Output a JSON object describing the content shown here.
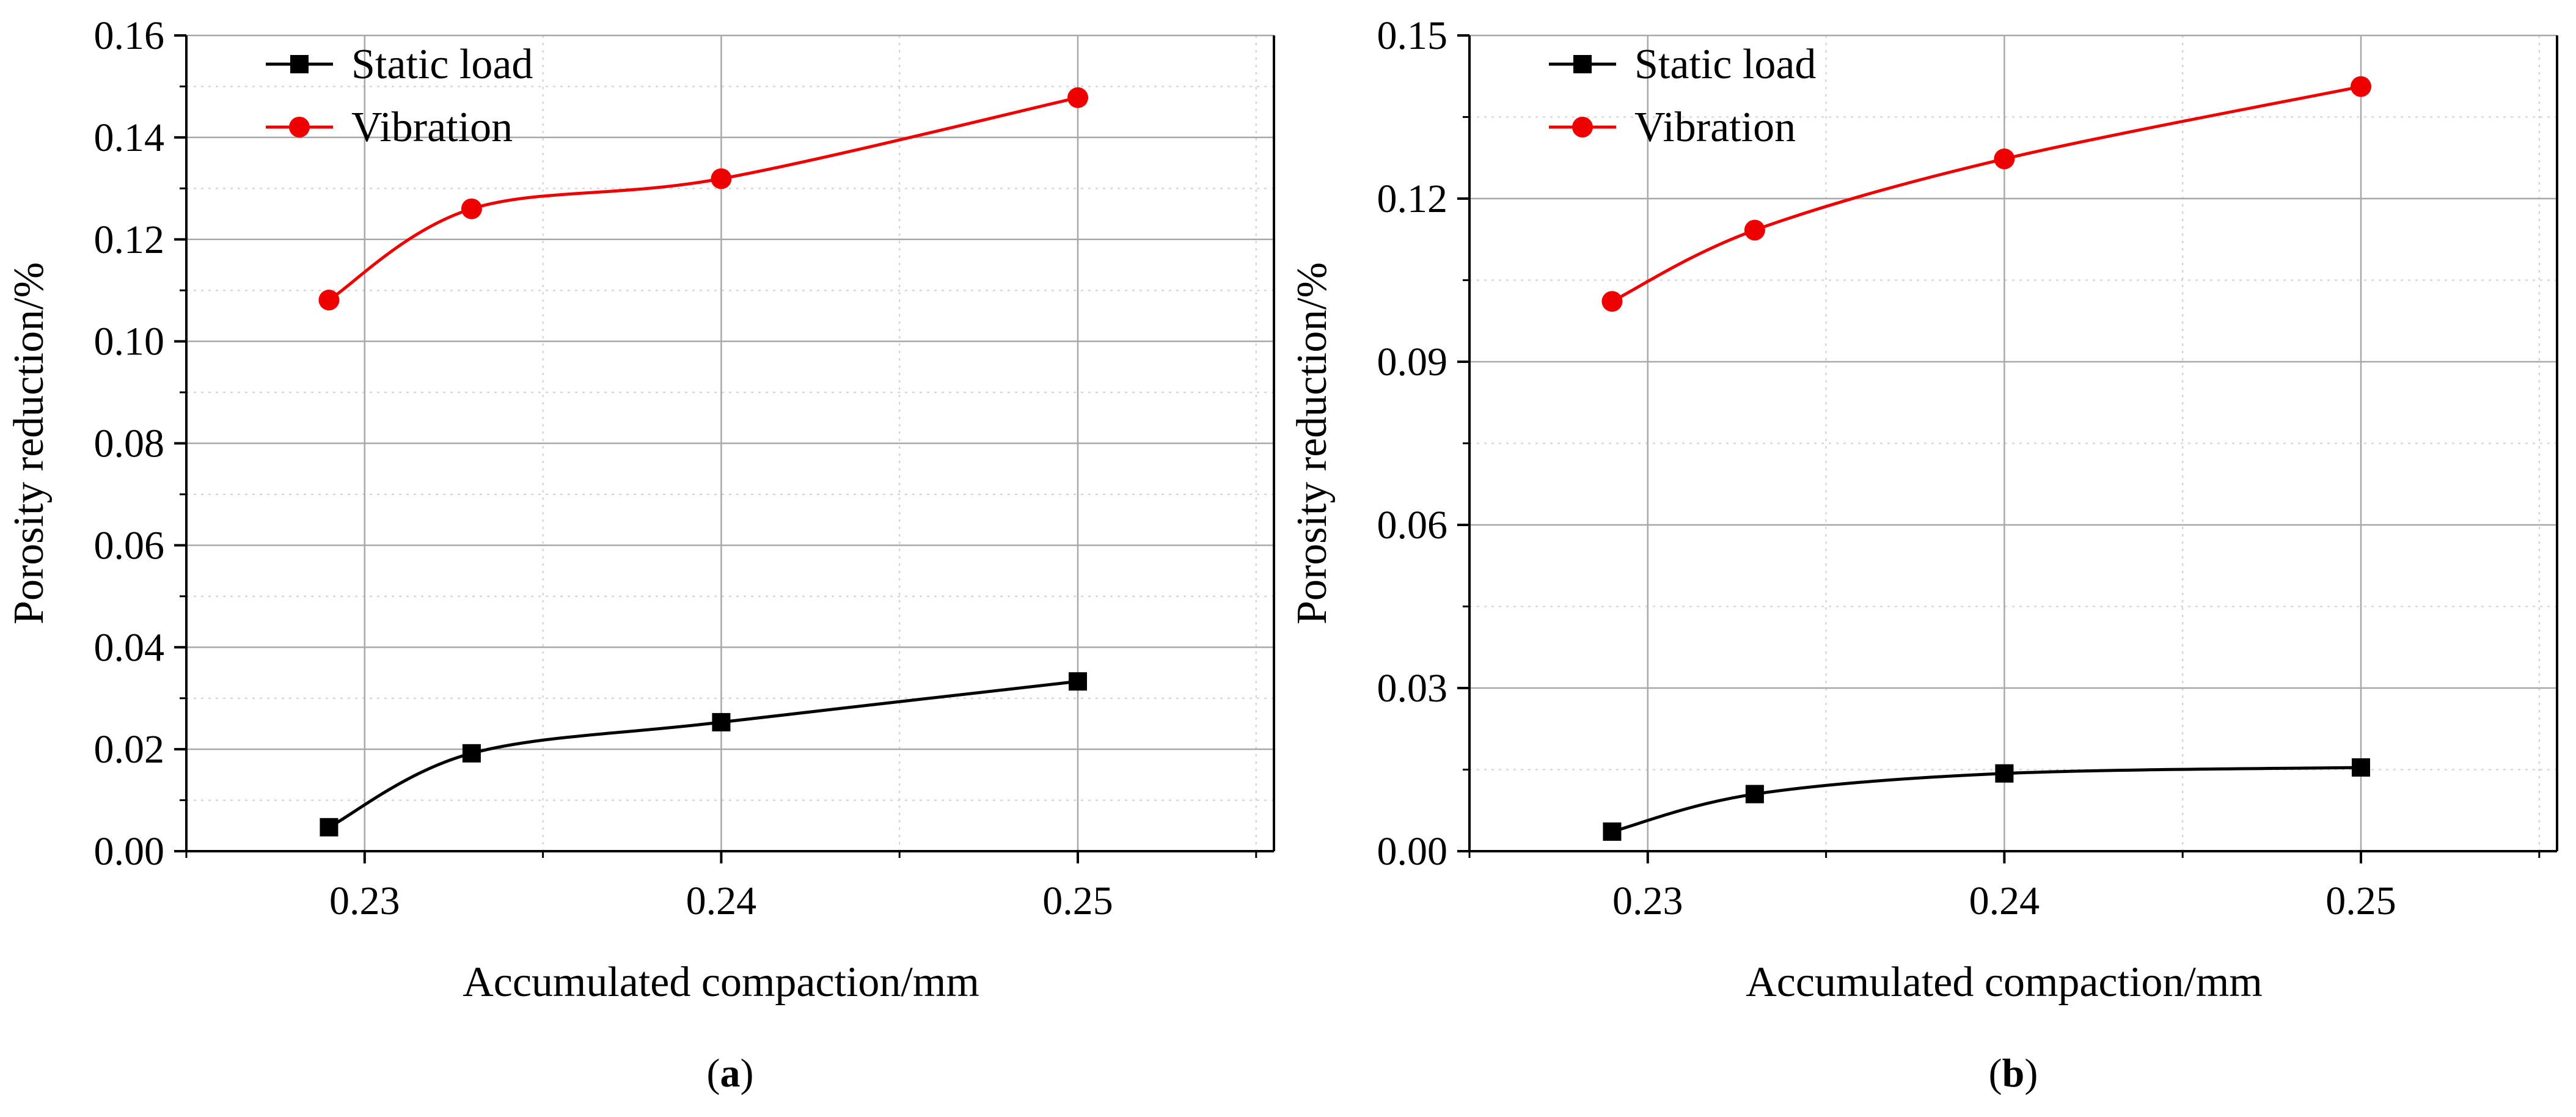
{
  "chart_data": [
    {
      "type": "line",
      "panel": "a",
      "xlabel": "Accumulated compaction/mm",
      "ylabel": "Porosity reduction/%",
      "xlim": [
        0.225,
        0.2555
      ],
      "ylim": [
        0,
        0.16
      ],
      "xticks": [
        0.23,
        0.24,
        0.25
      ],
      "xtick_labels": [
        "0.23",
        "0.24",
        "0.25"
      ],
      "yticks": [
        0,
        0.02,
        0.04,
        0.06,
        0.08,
        0.1,
        0.12,
        0.14,
        0.16
      ],
      "ytick_labels": [
        "0.00",
        "0.02",
        "0.04",
        "0.06",
        "0.08",
        "0.10",
        "0.12",
        "0.14",
        "0.16"
      ],
      "grid": true,
      "legend": "top-left",
      "x": [
        0.229,
        0.233,
        0.24,
        0.25
      ],
      "series": [
        {
          "name": "Static load",
          "color": "#000000",
          "marker": "square",
          "values": [
            0.0047,
            0.0192,
            0.0253,
            0.0333
          ]
        },
        {
          "name": "Vibration",
          "color": "#ee0000",
          "marker": "circle",
          "values": [
            0.1081,
            0.126,
            0.1319,
            0.1478
          ]
        }
      ],
      "caption": {
        "open": "(",
        "letter": "a",
        "close": ")"
      }
    },
    {
      "type": "line",
      "panel": "b",
      "xlabel": "Accumulated compaction/mm",
      "ylabel": "Porosity reduction/%",
      "xlim": [
        0.225,
        0.2555
      ],
      "ylim": [
        0,
        0.15
      ],
      "xticks": [
        0.23,
        0.24,
        0.25
      ],
      "xtick_labels": [
        "0.23",
        "0.24",
        "0.25"
      ],
      "yticks": [
        0,
        0.03,
        0.06,
        0.09,
        0.12,
        0.15
      ],
      "ytick_labels": [
        "0.00",
        "0.03",
        "0.06",
        "0.09",
        "0.12",
        "0.15"
      ],
      "grid": true,
      "legend": "top-left",
      "x": [
        0.229,
        0.233,
        0.24,
        0.25
      ],
      "series": [
        {
          "name": "Static load",
          "color": "#000000",
          "marker": "square",
          "values": [
            0.0036,
            0.0105,
            0.0143,
            0.0154
          ]
        },
        {
          "name": "Vibration",
          "color": "#ee0000",
          "marker": "circle",
          "values": [
            0.1011,
            0.1142,
            0.1273,
            0.1406
          ]
        }
      ],
      "caption": {
        "open": "(",
        "letter": "b",
        "close": ")"
      }
    }
  ]
}
